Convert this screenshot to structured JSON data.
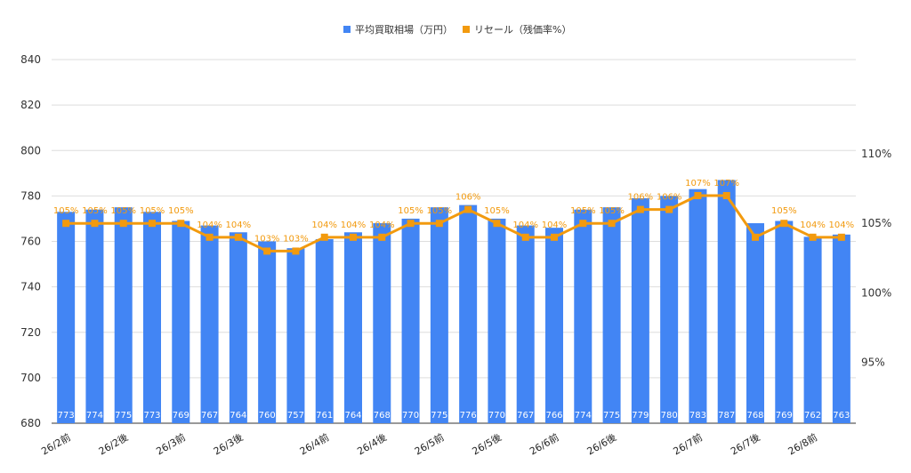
{
  "colors": {
    "bar": "#4285f4",
    "line": "#f29a0e",
    "grid": "#dddddd",
    "axis": "#333333"
  },
  "chart_data": {
    "type": "bar",
    "title": "",
    "legend": {
      "position": "top-center",
      "entries": [
        "平均買取相場（万円）",
        "リセール（残価率%）"
      ]
    },
    "grid": true,
    "categories": [
      "26/2前",
      "",
      "26/2後",
      "",
      "26/3前",
      "",
      "26/3後",
      "",
      "",
      "26/4前",
      "",
      "26/4後",
      "",
      "26/5前",
      "",
      "26/5後",
      "",
      "26/6前",
      "",
      "26/6後",
      "",
      "",
      "26/7前",
      "",
      "26/7後",
      "",
      "26/8前",
      ""
    ],
    "x_tick_labels": [
      "26/2前",
      "26/2後",
      "26/3前",
      "26/3後",
      "26/4前",
      "26/4後",
      "26/5前",
      "26/5後",
      "26/6前",
      "26/6後",
      "26/7前",
      "26/7後",
      "26/8前"
    ],
    "left_axis": {
      "ylim": [
        680,
        840
      ],
      "ticks": [
        680,
        700,
        720,
        740,
        760,
        780,
        800,
        820,
        840
      ]
    },
    "right_axis": {
      "ylim": [
        90.6,
        116.8
      ],
      "ticks": [
        95,
        100,
        105,
        110
      ],
      "tick_labels": [
        "95%",
        "100%",
        "105%",
        "110%"
      ]
    },
    "series": [
      {
        "name": "平均買取相場（万円）",
        "kind": "bar",
        "axis": "left",
        "values": [
          773,
          774,
          775,
          773,
          769,
          767,
          764,
          760,
          757,
          761,
          764,
          768,
          770,
          775,
          776,
          770,
          767,
          766,
          774,
          775,
          779,
          780,
          783,
          787,
          768,
          769,
          762,
          763
        ],
        "labels": [
          "773",
          "774",
          "775",
          "773",
          "769",
          "767",
          "764",
          "760",
          "757",
          "761",
          "764",
          "768",
          "770",
          "775",
          "776",
          "770",
          "767",
          "766",
          "774",
          "775",
          "779",
          "780",
          "783",
          "787",
          "768",
          "769",
          "762",
          "763"
        ]
      },
      {
        "name": "リセール（残価率%）",
        "kind": "line",
        "axis": "right",
        "values": [
          105,
          105,
          105,
          105,
          105,
          104,
          104,
          103,
          103,
          104,
          104,
          104,
          105,
          105,
          106,
          105,
          104,
          104,
          105,
          105,
          106,
          106,
          107,
          107,
          104,
          105,
          104,
          104
        ],
        "labels": [
          "105%",
          "105%",
          "105%",
          "105%",
          "105%",
          "104%",
          "104%",
          "103%",
          "103%",
          "104%",
          "104%",
          "104%",
          "105%",
          "105%",
          "106%",
          "105%",
          "104%",
          "104%",
          "105%",
          "105%",
          "106%",
          "106%",
          "107%",
          "107%",
          "104%",
          "105%",
          "104%",
          "104%"
        ],
        "label_shown": [
          true,
          true,
          true,
          true,
          true,
          true,
          true,
          true,
          true,
          true,
          true,
          true,
          true,
          true,
          true,
          true,
          true,
          true,
          true,
          true,
          true,
          true,
          true,
          true,
          false,
          true,
          true,
          true
        ]
      }
    ]
  }
}
